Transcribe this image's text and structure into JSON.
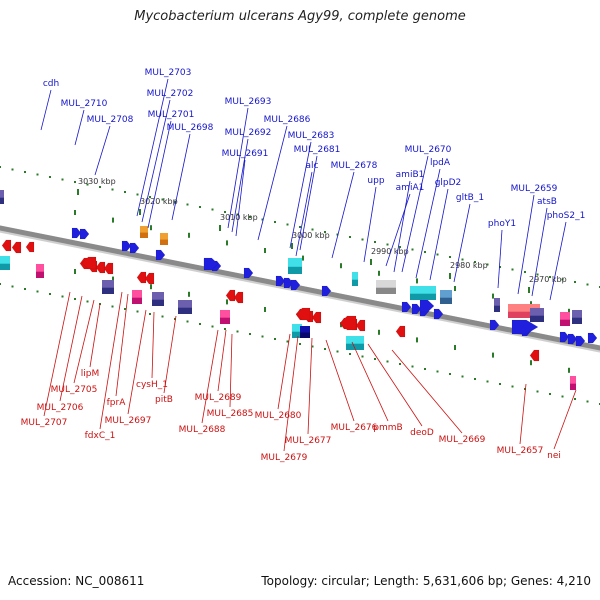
{
  "title": "Mycobacterium ulcerans Agy99, complete genome",
  "accession": "Accession: NC_008611",
  "summary": "Topology: circular; Length: 5,631,606 bp; Genes: 4,210",
  "colors": {
    "forward_label": "#1515cc",
    "reverse_label": "#cc1111",
    "backbone": "#8a8a8a",
    "tick": "#2a7a2a",
    "forward_arrow": "#1f1fdd",
    "reverse_arrow": "#e01010"
  },
  "ticks": [
    {
      "label": "3030 kbp"
    },
    {
      "label": "3020 kbp"
    },
    {
      "label": "3010 kbp"
    },
    {
      "label": "3000 kbp"
    },
    {
      "label": "2990 kbp"
    },
    {
      "label": "2980 kbp"
    },
    {
      "label": "2970 kbp"
    }
  ],
  "forward_labels": [
    "cdh",
    "MUL_2703",
    "MUL_2702",
    "MUL_2710",
    "MUL_2701",
    "MUL_2708",
    "MUL_2698",
    "MUL_2693",
    "MUL_2686",
    "MUL_2692",
    "MUL_2683",
    "MUL_2691",
    "MUL_2681",
    "alc",
    "MUL_2678",
    "upp",
    "MUL_2670",
    "amiB1",
    "lpdA",
    "amiA1",
    "glpD2",
    "gltB_1",
    "MUL_2659",
    "atsB",
    "phoS2_1",
    "phoY1"
  ],
  "reverse_labels": [
    "lipM",
    "MUL_2705",
    "MUL_2706",
    "MUL_2707",
    "fprA",
    "fdxC_1",
    "cysH_1",
    "MUL_2697",
    "pitB",
    "MUL_2689",
    "MUL_2685",
    "MUL_2688",
    "MUL_2680",
    "MUL_2677",
    "MUL_2679",
    "MUL_2676",
    "pmmB",
    "deoD",
    "MUL_2669",
    "MUL_2657",
    "nei"
  ]
}
